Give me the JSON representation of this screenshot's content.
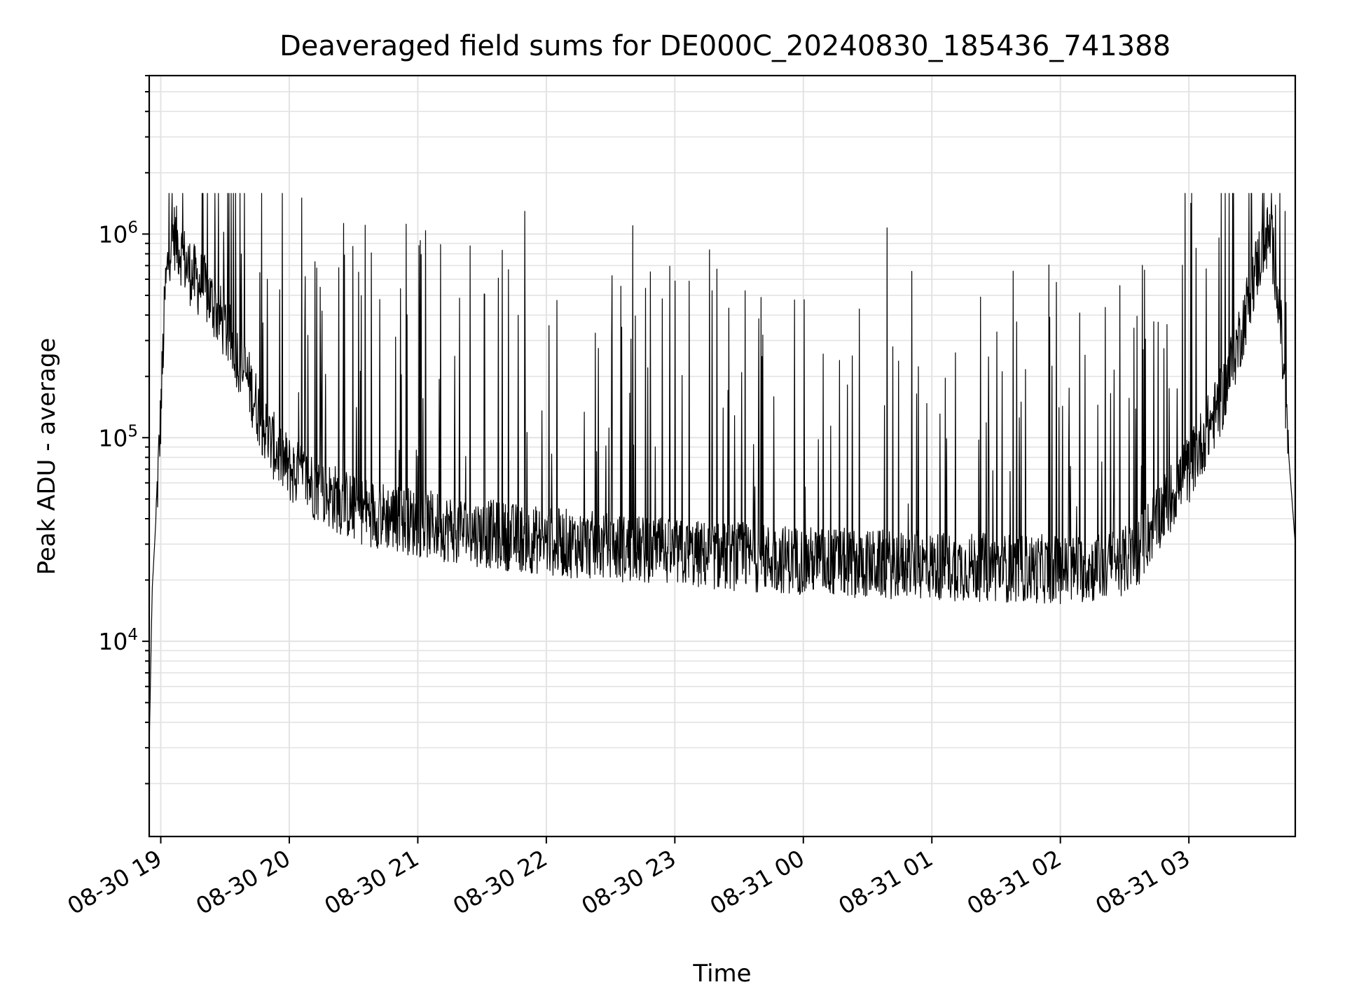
{
  "chart_data": {
    "type": "line",
    "title": "Deaveraged field sums for DE000C_20240830_185436_741388",
    "xlabel": "Time",
    "ylabel": "Peak ADU - average",
    "yscale": "log",
    "ylim": [
      1100,
      6000000
    ],
    "xlim": [
      "2024-08-30 18:54:36",
      "2024-08-31 03:49:40"
    ],
    "grid": true,
    "legend": "none",
    "line_color": "#000000",
    "x_tick_labels": [
      "08-30 19",
      "08-30 20",
      "08-30 21",
      "08-30 22",
      "08-30 23",
      "08-31 00",
      "08-31 01",
      "08-31 02",
      "08-31 03"
    ],
    "x_ticks": [
      "2024-08-30 19:00",
      "2024-08-30 20:00",
      "2024-08-30 21:00",
      "2024-08-30 22:00",
      "2024-08-30 23:00",
      "2024-08-31 00:00",
      "2024-08-31 01:00",
      "2024-08-31 02:00",
      "2024-08-31 03:00"
    ],
    "y_ticks": [
      {
        "value": 10000,
        "base": "10",
        "exp": "4"
      },
      {
        "value": 100000,
        "base": "10",
        "exp": "5"
      },
      {
        "value": 1000000,
        "base": "10",
        "exp": "6"
      }
    ],
    "series": [
      {
        "x": [
          "2024-08-30 18:54:36",
          "2024-08-30 18:56",
          "2024-08-30 18:58",
          "2024-08-30 19:00",
          "2024-08-30 19:02",
          "2024-08-30 19:04",
          "2024-08-30 19:06",
          "2024-08-30 19:08",
          "2024-08-30 19:12",
          "2024-08-30 19:16",
          "2024-08-30 19:20",
          "2024-08-30 19:30",
          "2024-08-30 19:40",
          "2024-08-30 19:50",
          "2024-08-30 20:00",
          "2024-08-30 20:15",
          "2024-08-30 20:30",
          "2024-08-30 21:00",
          "2024-08-30 21:30",
          "2024-08-30 22:00",
          "2024-08-30 22:30",
          "2024-08-30 23:00",
          "2024-08-30 23:30",
          "2024-08-31 00:00",
          "2024-08-31 00:30",
          "2024-08-31 01:00",
          "2024-08-31 01:30",
          "2024-08-31 02:00",
          "2024-08-31 02:20",
          "2024-08-31 02:35",
          "2024-08-31 02:45",
          "2024-08-31 03:00",
          "2024-08-31 03:15",
          "2024-08-31 03:25",
          "2024-08-31 03:30",
          "2024-08-31 03:35",
          "2024-08-31 03:38",
          "2024-08-31 03:42",
          "2024-08-31 03:46",
          "2024-08-31 03:49:40"
        ],
        "y": [
          3000,
          18000,
          45000,
          130000,
          500000,
          850000,
          1000000,
          900000,
          700000,
          600000,
          550000,
          350000,
          200000,
          100000,
          70000,
          55000,
          45000,
          38000,
          34000,
          31000,
          29000,
          27000,
          26000,
          25000,
          24000,
          23500,
          23000,
          22500,
          23000,
          26000,
          40000,
          70000,
          150000,
          350000,
          600000,
          900000,
          1000000,
          500000,
          100000,
          30000
        ]
      }
    ]
  }
}
